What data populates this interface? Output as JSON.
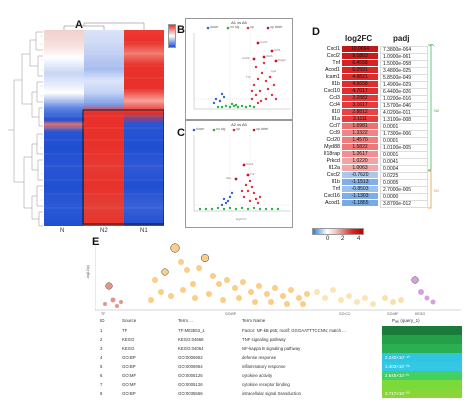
{
  "panels": {
    "a": "A",
    "b": "B",
    "c": "C",
    "d": "D",
    "e": "E"
  },
  "heatmap": {
    "columns": [
      "N",
      "N2",
      "N1"
    ],
    "colors": {
      "high": "#e8312a",
      "mid": "#ffffff",
      "low": "#1f4fd1"
    }
  },
  "volcano_b": {
    "title": "A1 vs A0",
    "legend": [
      "down",
      "no sig",
      "up",
      "up label"
    ],
    "gene_labels": [
      "Cxcl1",
      "Ccl5",
      "Il12b",
      "Ptgs2",
      "Cxcl2",
      "Irg1",
      "Tnf"
    ]
  },
  "volcano_c": {
    "title": "A2 vs A0",
    "legend": [
      "down",
      "no sig",
      "up",
      "up label"
    ],
    "gene_labels": [
      "Cxcl1",
      "Tnf",
      "Il1a"
    ],
    "xlabel": "log2 FC"
  },
  "table_d": {
    "header_fc": "log2FC",
    "header_padj": "padj",
    "rows": [
      {
        "gene": "Cxcl1",
        "fc": "10.0664",
        "padj": "7.3800e-064",
        "color": "#c41818"
      },
      {
        "gene": "Cxcl2",
        "fc": "9.1803",
        "padj": "1.0900e-061",
        "color": "#c81c1c"
      },
      {
        "gene": "Tnf",
        "fc": "6.4558",
        "padj": "1.5000e-058",
        "color": "#d62424"
      },
      {
        "gene": "Acod1",
        "fc": "6.0591",
        "padj": "3.4800e-025",
        "color": "#d82626"
      },
      {
        "gene": "Icam1",
        "fc": "4.8821",
        "padj": "5.8500e-049",
        "color": "#dd2c2c"
      },
      {
        "gene": "Il1b",
        "fc": "4.6658",
        "padj": "1.4900e-029",
        "color": "#de2e2e"
      },
      {
        "gene": "Cxcl10",
        "fc": "4.7017",
        "padj": "6.4400e-026",
        "color": "#de2e2e"
      },
      {
        "gene": "Ccl3",
        "fc": "3.2882",
        "padj": "1.0200e-016",
        "color": "#e43a3a"
      },
      {
        "gene": "Ccl4",
        "fc": "3.1617",
        "padj": "1.5700e-046",
        "color": "#e43c3c"
      },
      {
        "gene": "Il10",
        "fc": "2.8812",
        "padj": "4.0200e-011",
        "color": "#e64444"
      },
      {
        "gene": "Il1a",
        "fc": "3.1111",
        "padj": "1.3100e-008",
        "color": "#e43c3c"
      },
      {
        "gene": "Ccl7",
        "fc": "1.6981",
        "padj": "0.0001",
        "color": "#ec7272"
      },
      {
        "gene": "Ccl9",
        "fc": "1.3322",
        "padj": "1.7300e-006",
        "color": "#ef8686"
      },
      {
        "gene": "Ccl20",
        "fc": "1.4570",
        "padj": "0.0001",
        "color": "#ee7e7e"
      },
      {
        "gene": "Myd88",
        "fc": "1.5822",
        "padj": "1.0100e-005",
        "color": "#ed7878"
      },
      {
        "gene": "Il18rap",
        "fc": "1.2617",
        "padj": "0.0001",
        "color": "#f09090"
      },
      {
        "gene": "Prkcd",
        "fc": "1.0220",
        "padj": "0.0041",
        "color": "#f3a4a4"
      },
      {
        "gene": "Il12a",
        "fc": "1.0063",
        "padj": "0.0004",
        "color": "#f3a6a6"
      },
      {
        "gene": "Cxcl2",
        "fc": "-0.7620",
        "padj": "0.0225",
        "color": "#a8c8f0"
      },
      {
        "gene": "Il1b",
        "fc": "-1.1513",
        "padj": "0.0005",
        "color": "#7faee8"
      },
      {
        "gene": "Tnf",
        "fc": "-0.8503",
        "padj": "2.7000e-005",
        "color": "#9cc0ee"
      },
      {
        "gene": "Cxcl16",
        "fc": "-1.1303",
        "padj": "0.0000",
        "color": "#80afe8"
      },
      {
        "gene": "Acod1",
        "fc": "-1.1865",
        "padj": "3.8700e-012",
        "color": "#7aaae6"
      }
    ],
    "side_labels": [
      "N2",
      "N1"
    ],
    "colorbar_ticks": [
      "0",
      "2",
      "4"
    ]
  },
  "manhattan": {
    "ylabel": "-log10(p)",
    "categories": [
      "GO:BP",
      "GO:CC",
      "GO:MF",
      "KEGG",
      "TF"
    ],
    "colors": {
      "GO:BP": "#f5a623",
      "GO:CC": "#f7d38a",
      "GO:MF": "#f2c86a",
      "KEGG": "#c05fd0",
      "TF": "#d23c2c"
    },
    "highlight_numbers": [
      "1",
      "2",
      "3",
      "4",
      "5",
      "6",
      "7",
      "8"
    ]
  },
  "table_e": {
    "headers": {
      "id": "ID",
      "source": "Source",
      "term_id": "Term ...",
      "term_name": "Term Name",
      "padj": "Pₐₑⱼ (query_1)"
    },
    "rows": [
      {
        "id": "1",
        "source": "TF",
        "term_id": "TF:M03553_1",
        "term_name": "Factor: NF-kB p65; motif: GGGAATTTCCNN; match ...",
        "padj": "",
        "color": "#1a7a3a"
      },
      {
        "id": "2",
        "source": "KEGG",
        "term_id": "KEGG:04668",
        "term_name": "TNF signaling pathway",
        "padj": "",
        "color": "#26a048"
      },
      {
        "id": "3",
        "source": "KEGG",
        "term_id": "KEGG:04064",
        "term_name": "NF-kappa B signaling pathway",
        "padj": "",
        "color": "#2ab050"
      },
      {
        "id": "4",
        "source": "GO:BP",
        "term_id": "GO:0006952",
        "term_name": "defense response",
        "padj": "2.240×10⁻⁴⁰",
        "color": "#2fc4e0"
      },
      {
        "id": "5",
        "source": "GO:BP",
        "term_id": "GO:0006954",
        "term_name": "inflammatory response",
        "padj": "1.403×10⁻³⁸",
        "color": "#35c8e4"
      },
      {
        "id": "6",
        "source": "GO:MF",
        "term_id": "GO:0005125",
        "term_name": "cytokine activity",
        "padj": "2.545×10⁻²⁷",
        "color": "#42d060"
      },
      {
        "id": "7",
        "source": "GO:MF",
        "term_id": "GO:0005126",
        "term_name": "cytokine receptor binding",
        "padj": "",
        "color": "#7ada3a"
      },
      {
        "id": "8",
        "source": "GO:BP",
        "term_id": "GO:0035556",
        "term_name": "intracellular signal transduction",
        "padj": "2.717×10⁻²⁰",
        "color": "#8ad638"
      }
    ]
  }
}
